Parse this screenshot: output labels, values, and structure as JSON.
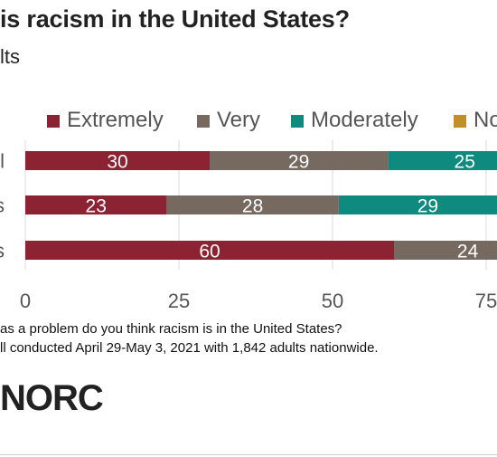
{
  "header": {
    "title": "is racism in the United States?",
    "subtitle": "lts"
  },
  "colors": {
    "extremely": "#8b2332",
    "very": "#756960",
    "moderately": "#0f8a7e",
    "not": "#c18f27",
    "gridline": "#d9d9d9",
    "bar_text": "#ffffff",
    "axis_text": "#555555"
  },
  "chart_data": {
    "type": "bar",
    "orientation": "horizontal",
    "stacked": true,
    "categories": [
      "l",
      "s",
      "s"
    ],
    "series": [
      {
        "name": "Extremely",
        "values": [
          30,
          23,
          60
        ]
      },
      {
        "name": "Very",
        "values": [
          29,
          28,
          24
        ]
      },
      {
        "name": "Moderately",
        "values": [
          25,
          29,
          null
        ]
      },
      {
        "name": "No",
        "values": [
          null,
          null,
          null
        ]
      }
    ],
    "xticks": [
      "0",
      "25",
      "50",
      "75"
    ],
    "xlim": [
      0,
      100
    ],
    "grid": true,
    "legend_position": "top"
  },
  "footer": {
    "note_question": "as a problem do you think racism is in the United States?",
    "note_source": "ll conducted April 29-May 3, 2021 with 1,842 adults nationwide.",
    "logo_text": "NORC"
  }
}
